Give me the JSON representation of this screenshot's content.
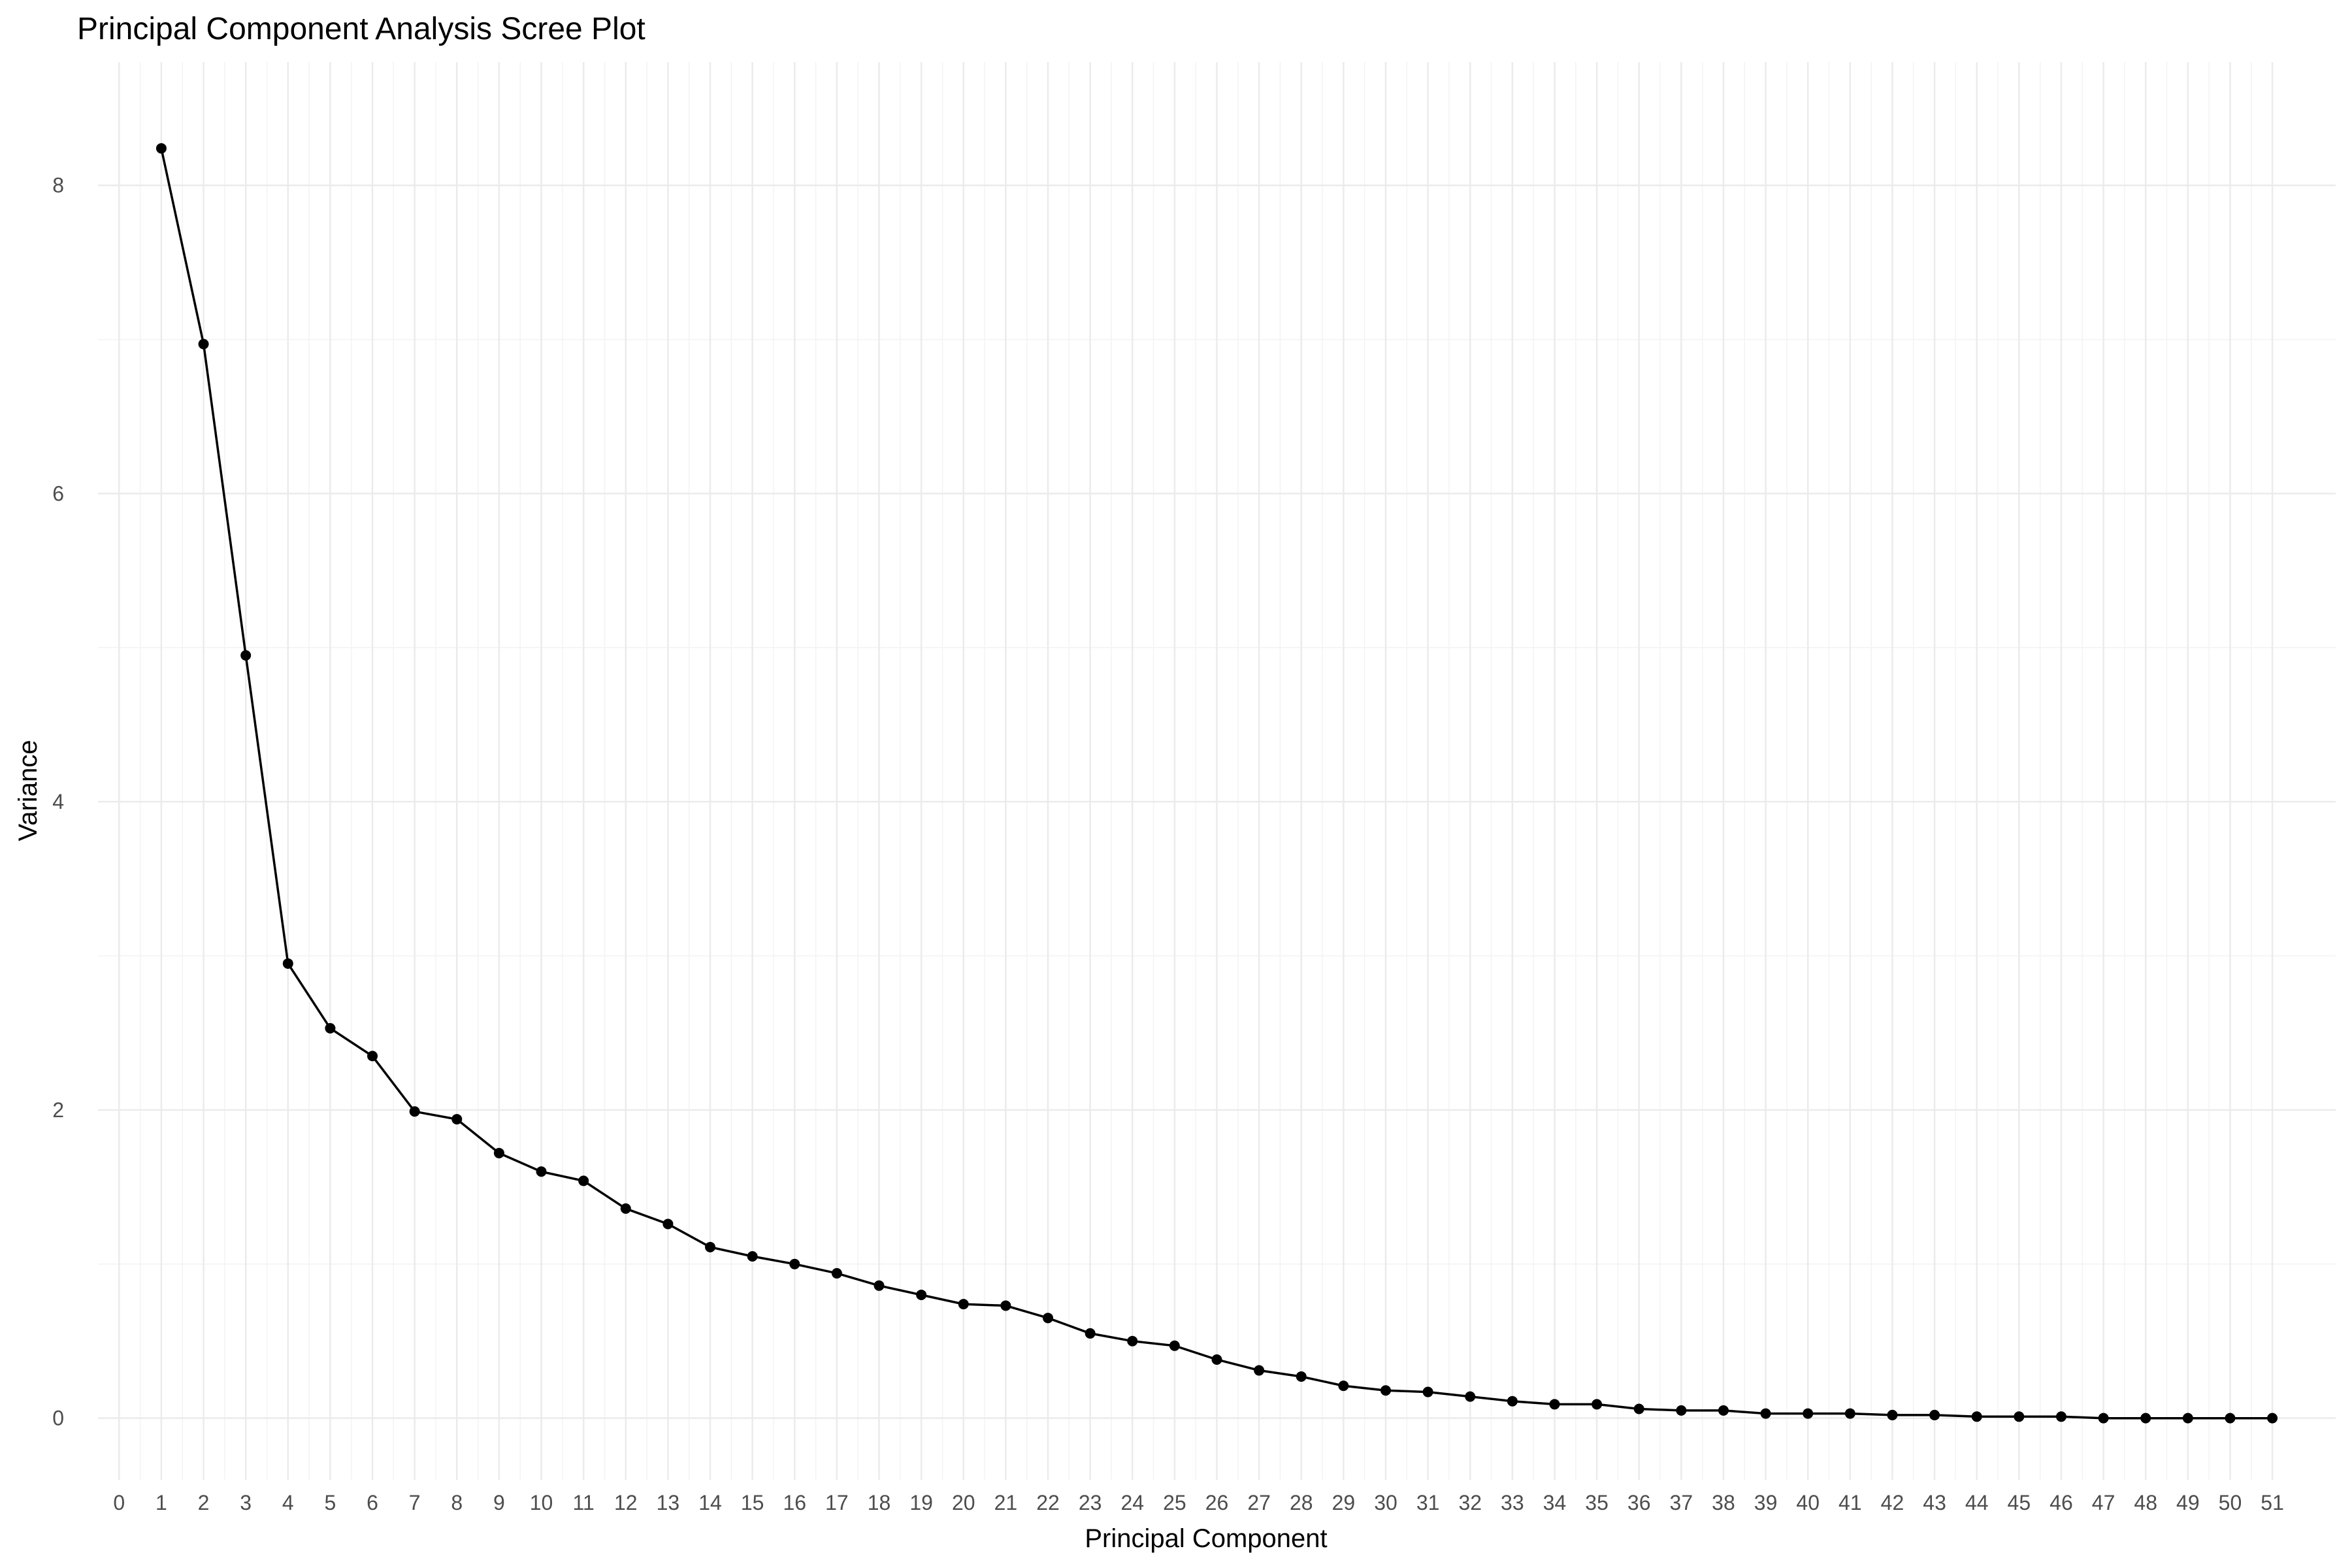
{
  "chart_data": {
    "type": "line",
    "title": "Principal Component Analysis Scree Plot",
    "xlabel": "Principal Component",
    "ylabel": "Variance",
    "xlim": [
      -0.5,
      52.5
    ],
    "ylim": [
      -0.4,
      8.8
    ],
    "x_ticks": [
      0,
      1,
      2,
      3,
      4,
      5,
      6,
      7,
      8,
      9,
      10,
      11,
      12,
      13,
      14,
      15,
      16,
      17,
      18,
      19,
      20,
      21,
      22,
      23,
      24,
      25,
      26,
      27,
      28,
      29,
      30,
      31,
      32,
      33,
      34,
      35,
      36,
      37,
      38,
      39,
      40,
      41,
      42,
      43,
      44,
      45,
      46,
      47,
      48,
      49,
      50,
      51
    ],
    "y_ticks": [
      0,
      2,
      4,
      6,
      8
    ],
    "grid": true,
    "series": [
      {
        "x": [
          1,
          2,
          3,
          4,
          5,
          6,
          7,
          8,
          9,
          10,
          11,
          12,
          13,
          14,
          15,
          16,
          17,
          18,
          19,
          20,
          21,
          22,
          23,
          24,
          25,
          26,
          27,
          28,
          29,
          30,
          31,
          32,
          33,
          34,
          35,
          36,
          37,
          38,
          39,
          40,
          41,
          42,
          43,
          44,
          45,
          46,
          47,
          48,
          49,
          50,
          51
        ],
        "values": [
          8.24,
          6.97,
          4.95,
          2.95,
          2.53,
          2.35,
          1.99,
          1.94,
          1.72,
          1.6,
          1.54,
          1.36,
          1.26,
          1.11,
          1.05,
          1.0,
          0.94,
          0.86,
          0.8,
          0.74,
          0.73,
          0.65,
          0.55,
          0.5,
          0.47,
          0.38,
          0.31,
          0.27,
          0.21,
          0.18,
          0.17,
          0.14,
          0.11,
          0.09,
          0.09,
          0.06,
          0.05,
          0.05,
          0.03,
          0.03,
          0.03,
          0.02,
          0.02,
          0.01,
          0.01,
          0.01,
          0.0,
          0.0,
          0.0,
          0.0,
          0.0
        ]
      }
    ]
  }
}
